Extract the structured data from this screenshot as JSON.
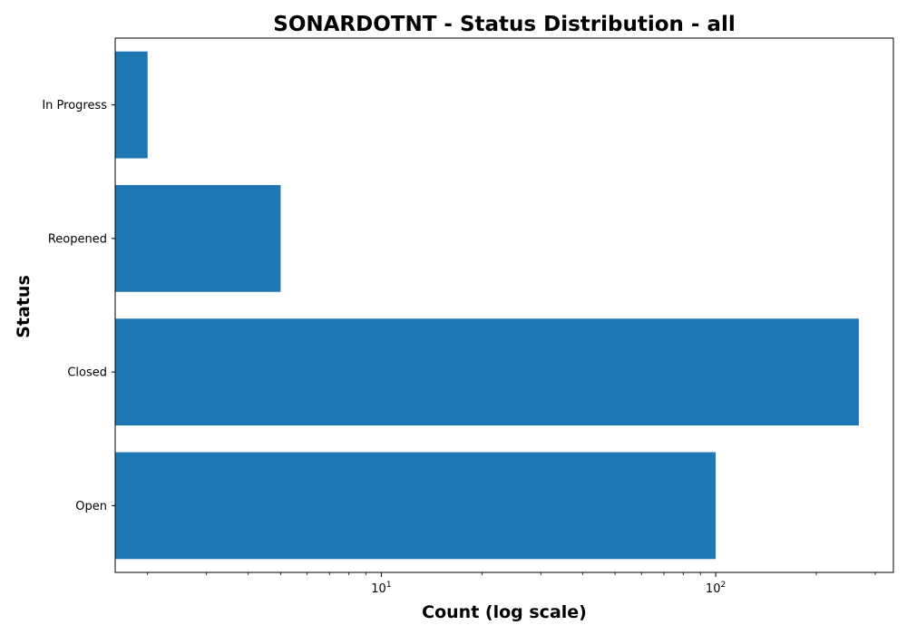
{
  "chart_data": {
    "type": "bar",
    "orientation": "horizontal",
    "title": "SONARDOTNT - Status Distribution - all",
    "xlabel": "Count (log scale)",
    "ylabel": "Status",
    "x_scale": "log",
    "xlim": [
      1.6,
      340
    ],
    "x_major_ticks": [
      10,
      100
    ],
    "x_major_tick_labels": [
      {
        "base": "10",
        "exp": "1"
      },
      {
        "base": "10",
        "exp": "2"
      }
    ],
    "categories": [
      "Open",
      "Closed",
      "Reopened",
      "In Progress"
    ],
    "values": [
      100,
      268,
      5,
      2
    ],
    "bar_color": "#1f77b4",
    "grid": false,
    "legend": "none"
  }
}
